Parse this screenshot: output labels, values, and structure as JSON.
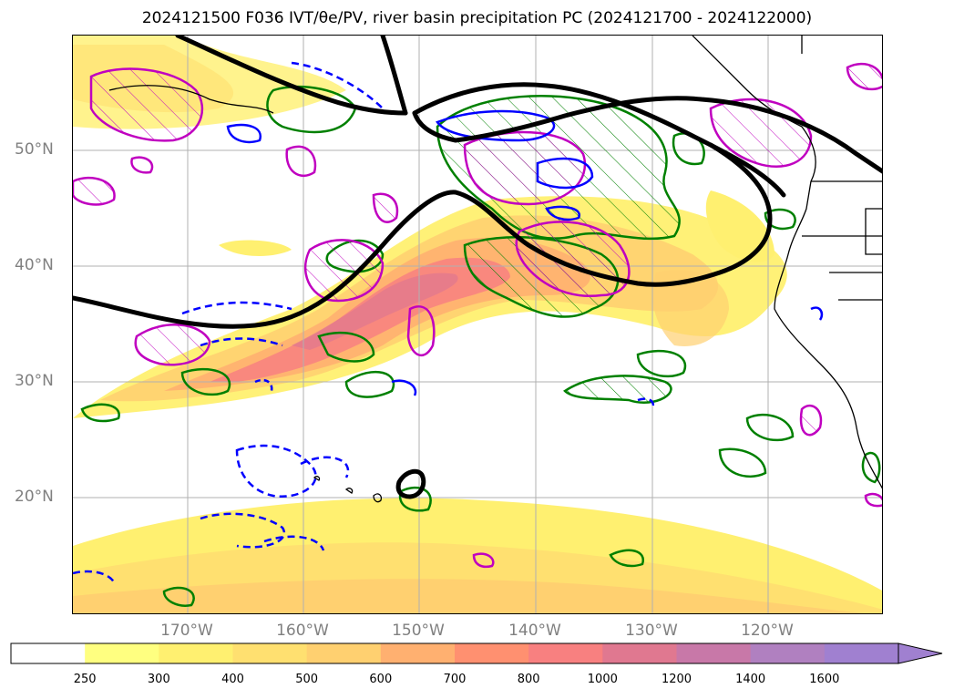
{
  "title": "2024121500 F036 IVT/θe/PV, river basin precipitation PC (2024121700 - 2024122000)",
  "lat_labels": [
    "50°N",
    "40°N",
    "30°N",
    "20°N"
  ],
  "lon_labels": [
    "170°W",
    "160°W",
    "150°W",
    "140°W",
    "130°W",
    "120°W"
  ],
  "colorbar": {
    "levels": [
      "250",
      "300",
      "400",
      "500",
      "600",
      "700",
      "800",
      "1000",
      "1200",
      "1400",
      "1600"
    ],
    "colors": [
      "#ffffff",
      "#ffff80",
      "#fff070",
      "#ffe070",
      "#ffd070",
      "#ffb070",
      "#ff9070",
      "#f88080",
      "#e07890",
      "#c878a8",
      "#b080c0",
      "#a080d0"
    ]
  },
  "legend_colors": {
    "theta_e_contour": "#000000",
    "pv_dashed": "#0000ff",
    "pv_solid": "#0000ff",
    "precip_green": "#008000",
    "precip_magenta": "#c000c0"
  }
}
